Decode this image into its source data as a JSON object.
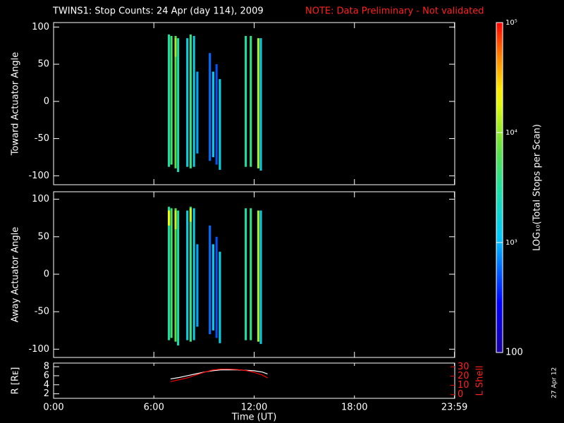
{
  "title": "TWINS1: Stop Counts: 24 Apr (day 114), 2009",
  "note": "NOTE: Data Preliminary - Not validated",
  "date_stamp": "27 Apr 12",
  "colorbar": {
    "label": "LOG₁₀(Total Stops per Scan)",
    "lim": [
      100,
      100000
    ],
    "log": true,
    "ticks": [
      {
        "value": 100,
        "label": "100"
      },
      {
        "value": 1000,
        "label": "10³"
      },
      {
        "value": 10000,
        "label": "10⁴"
      },
      {
        "value": 100000,
        "label": "10⁵"
      }
    ]
  },
  "chart_data": [
    {
      "type": "heatmap",
      "ylabel": "Toward Actuator Angle",
      "ylim": [
        -112,
        106
      ],
      "yticks": [
        -100,
        -50,
        0,
        50,
        100
      ],
      "strips": [
        {
          "x": 6.9,
          "ymin": -88,
          "ymax": 90,
          "value": 3000
        },
        {
          "x": 7.05,
          "ymin": -85,
          "ymax": 88,
          "value": 5000
        },
        {
          "x": 7.3,
          "ymin": -90,
          "ymax": 88,
          "value": 7000
        },
        {
          "x": 7.3,
          "ymin": 60,
          "ymax": 85,
          "value": 12000
        },
        {
          "x": 7.45,
          "ymin": -95,
          "ymax": 85,
          "value": 2500
        },
        {
          "x": 8.0,
          "ymin": -88,
          "ymax": 85,
          "value": 1500
        },
        {
          "x": 8.2,
          "ymin": -90,
          "ymax": 90,
          "value": 4000
        },
        {
          "x": 8.4,
          "ymin": -88,
          "ymax": 88,
          "value": 1500
        },
        {
          "x": 8.6,
          "ymin": -70,
          "ymax": 40,
          "value": 900
        },
        {
          "x": 9.35,
          "ymin": -80,
          "ymax": 65,
          "value": 600
        },
        {
          "x": 9.55,
          "ymin": -75,
          "ymax": 40,
          "value": 1200
        },
        {
          "x": 9.75,
          "ymin": -85,
          "ymax": 50,
          "value": 500
        },
        {
          "x": 9.95,
          "ymin": -92,
          "ymax": 30,
          "value": 1500
        },
        {
          "x": 11.5,
          "ymin": -88,
          "ymax": 88,
          "value": 3000
        },
        {
          "x": 11.8,
          "ymin": -88,
          "ymax": 88,
          "value": 4000
        },
        {
          "x": 12.25,
          "ymin": -90,
          "ymax": 85,
          "value": 12000
        },
        {
          "x": 12.4,
          "ymin": -93,
          "ymax": 85,
          "value": 1500
        }
      ]
    },
    {
      "type": "heatmap",
      "ylabel": "Away Actuator Angle",
      "ylim": [
        -111,
        110
      ],
      "yticks": [
        -100,
        -50,
        0,
        50,
        100
      ],
      "strips": [
        {
          "x": 6.9,
          "ymin": -88,
          "ymax": 90,
          "value": 3000
        },
        {
          "x": 6.9,
          "ymin": 65,
          "ymax": 85,
          "value": 20000
        },
        {
          "x": 7.05,
          "ymin": -85,
          "ymax": 88,
          "value": 5000
        },
        {
          "x": 7.3,
          "ymin": -90,
          "ymax": 88,
          "value": 7000
        },
        {
          "x": 7.3,
          "ymin": 60,
          "ymax": 85,
          "value": 15000
        },
        {
          "x": 7.45,
          "ymin": -95,
          "ymax": 85,
          "value": 2500
        },
        {
          "x": 8.0,
          "ymin": -88,
          "ymax": 85,
          "value": 1500
        },
        {
          "x": 8.2,
          "ymin": -90,
          "ymax": 90,
          "value": 4000
        },
        {
          "x": 8.2,
          "ymin": 70,
          "ymax": 88,
          "value": 15000
        },
        {
          "x": 8.4,
          "ymin": -88,
          "ymax": 88,
          "value": 1500
        },
        {
          "x": 8.6,
          "ymin": -70,
          "ymax": 40,
          "value": 900
        },
        {
          "x": 9.35,
          "ymin": -80,
          "ymax": 65,
          "value": 600
        },
        {
          "x": 9.55,
          "ymin": -75,
          "ymax": 40,
          "value": 1200
        },
        {
          "x": 9.75,
          "ymin": -85,
          "ymax": 50,
          "value": 500
        },
        {
          "x": 9.95,
          "ymin": -92,
          "ymax": 30,
          "value": 1500
        },
        {
          "x": 11.5,
          "ymin": -88,
          "ymax": 88,
          "value": 3000
        },
        {
          "x": 11.8,
          "ymin": -88,
          "ymax": 88,
          "value": 4000
        },
        {
          "x": 12.25,
          "ymin": -90,
          "ymax": 85,
          "value": 12000
        },
        {
          "x": 12.4,
          "ymin": -93,
          "ymax": 85,
          "value": 1500
        }
      ]
    },
    {
      "type": "line",
      "ylabel": "R [Rᴇ]",
      "y2label": "L Shell",
      "xlabel": "Time (UT)",
      "xlim": [
        0,
        24
      ],
      "xticks": [
        {
          "value": 0,
          "label": "0:00"
        },
        {
          "value": 6,
          "label": "6:00"
        },
        {
          "value": 12,
          "label": "12:00"
        },
        {
          "value": 18,
          "label": "18:00"
        },
        {
          "value": 23.983,
          "label": "23:59"
        }
      ],
      "ylim": [
        1,
        8.8
      ],
      "yticks": [
        2,
        4,
        6,
        8
      ],
      "y2lim": [
        -4,
        34
      ],
      "y2ticks": [
        0,
        10,
        20,
        30
      ],
      "x": [
        7,
        7.5,
        8,
        8.5,
        9,
        9.5,
        10,
        10.5,
        11,
        11.5,
        12,
        12.5,
        12.8
      ],
      "series": [
        {
          "name": "R",
          "color": "#ffffff",
          "values": [
            5.3,
            5.6,
            6.0,
            6.4,
            6.8,
            7.1,
            7.3,
            7.3,
            7.3,
            7.2,
            7.1,
            6.8,
            6.4
          ]
        },
        {
          "name": "L Shell",
          "color": "#ff0000",
          "axis": "y2",
          "values": [
            14,
            16,
            18,
            21,
            24,
            26.5,
            27.5,
            27.5,
            27,
            26,
            24,
            21,
            18
          ]
        }
      ]
    }
  ]
}
